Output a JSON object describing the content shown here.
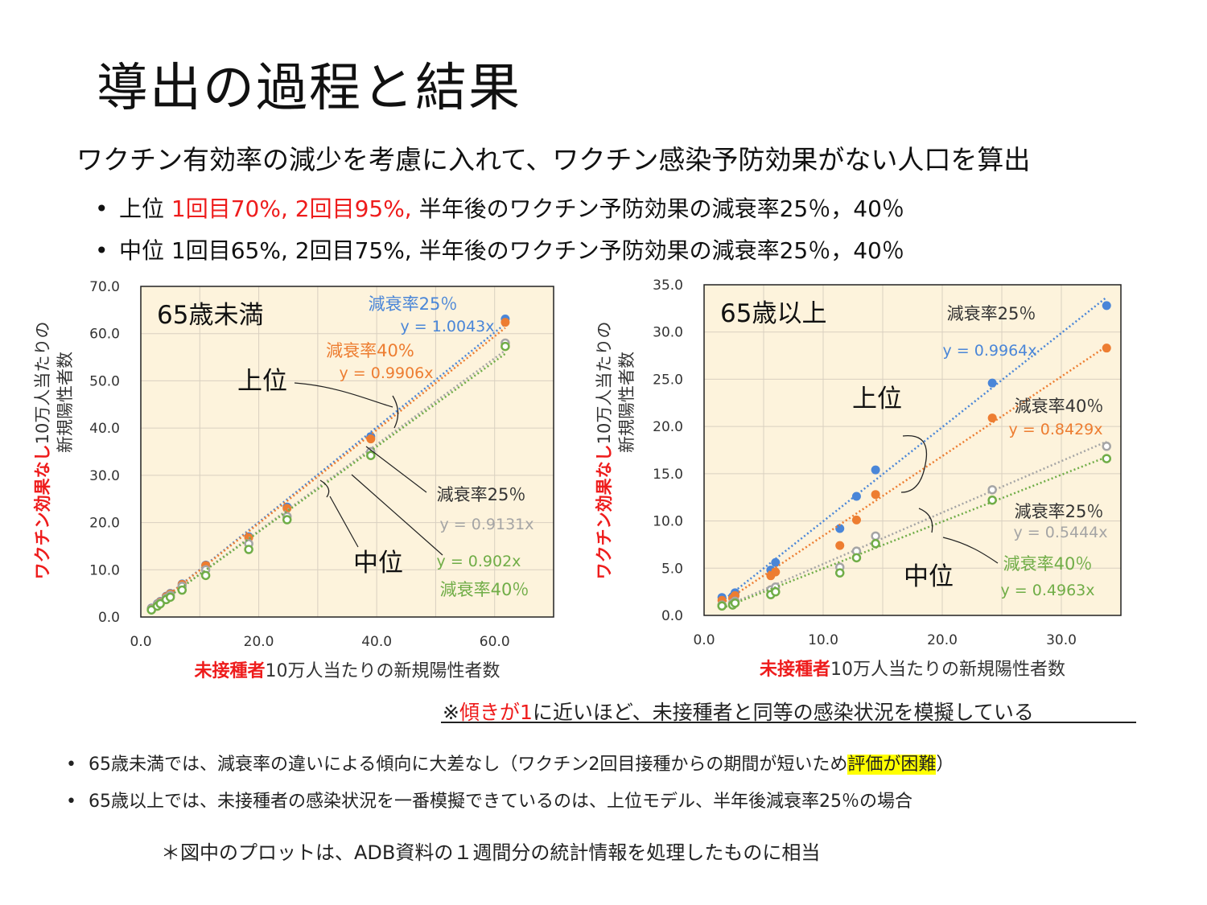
{
  "title": "導出の過程と結果",
  "subtitle": "ワクチン有効率の減少を考慮に入れて、ワクチン感染予防効果がない人口を算出",
  "bullets": [
    {
      "dot": "•",
      "lead": "上位 ",
      "red": "1回目70%, 2回目95%,",
      "rest": " 半年後のワクチン予防効果の減衰率25％，40％"
    },
    {
      "dot": "•",
      "lead": "中位 ",
      "red": "",
      "rest": "1回目65%, 2回目75%, 半年後のワクチン予防効果の減衰率25％，40％"
    }
  ],
  "colors": {
    "blue": "#4a86d8",
    "orange": "#ed7d31",
    "gray": "#a5a5a5",
    "green": "#70ad47",
    "plot_bg": "#fdf3dc",
    "red": "#ee1c1c"
  },
  "note": {
    "mark": "※",
    "red": "傾きが1",
    "rest": "に近いほど、未接種者と同等の感染状況を模擬している"
  },
  "conclusions": [
    {
      "dot": "•",
      "text": "65歳未満では、減衰率の違いによる傾向に大差なし（ワクチン2回目接種からの期間が短いため",
      "highlight": "評価が困難",
      "tail": "）"
    },
    {
      "dot": "•",
      "text": "65歳以上では、未接種者の感染状況を一番模擬できているのは、上位モデル、半年後減衰率25％の場合",
      "highlight": "",
      "tail": ""
    }
  ],
  "footnote": "＊図中のプロットは、ADB資料の１週間分の統計情報を処理したものに相当",
  "chart_data": [
    {
      "type": "scatter",
      "title": "65歳未満",
      "xlabel_red": "未接種者",
      "xlabel": "10万人当たりの新規陽性者数",
      "ylabel_red": "ワクチン効果なし",
      "ylabel_line1": "10万人当たりの",
      "ylabel_line2": "新規陽性者数",
      "xlim": [
        0,
        70
      ],
      "ylim": [
        0,
        70
      ],
      "xticks": [
        0,
        20,
        40,
        60
      ],
      "xtick_labels": [
        "0.0",
        "20.0",
        "40.0",
        "60.0"
      ],
      "yticks": [
        0,
        10,
        20,
        30,
        40,
        50,
        60,
        70
      ],
      "ytick_labels": [
        "0.0",
        "10.0",
        "20.0",
        "30.0",
        "40.0",
        "50.0",
        "60.0",
        "70.0"
      ],
      "grid": true,
      "x": [
        1.8,
        2.8,
        3.3,
        4.3,
        5.0,
        7.0,
        11.0,
        18.3,
        24.8,
        39.0,
        61.8
      ],
      "series": [
        {
          "color": "blue",
          "marker": "filled",
          "slope": 1.0043,
          "values": [
            1.9,
            2.8,
            3.3,
            4.4,
            5.0,
            7.0,
            11.0,
            17.0,
            23.3,
            38.2,
            63.1
          ]
        },
        {
          "color": "orange",
          "marker": "filled",
          "slope": 0.9906,
          "values": [
            1.8,
            2.7,
            3.2,
            4.3,
            4.9,
            6.9,
            10.9,
            16.8,
            23.0,
            37.7,
            62.4
          ]
        },
        {
          "color": "gray",
          "marker": "open",
          "slope": 0.9131,
          "values": [
            1.7,
            2.6,
            3.0,
            4.0,
            4.6,
            6.5,
            10.0,
            15.5,
            21.3,
            35.0,
            58.0
          ]
        },
        {
          "color": "green",
          "marker": "open",
          "slope": 0.902,
          "values": [
            1.5,
            2.3,
            2.8,
            3.7,
            4.2,
            5.7,
            8.8,
            14.3,
            20.6,
            34.2,
            57.3
          ]
        }
      ],
      "annotations": {
        "a1": "減衰率25％",
        "a1_eq": "y = 1.0043x",
        "a2": "減衰率40%",
        "a2_eq": "y = 0.9906x",
        "a3": "減衰率25％",
        "a3_eq": "y = 0.9131x",
        "a4_eq": "y = 0.902x",
        "a4": "減衰率40％",
        "upper": "上位",
        "middle": "中位"
      }
    },
    {
      "type": "scatter",
      "title": "65歳以上",
      "xlabel_red": "未接種者",
      "xlabel": "10万人当たりの新規陽性者数",
      "ylabel_red": "ワクチン効果なし",
      "ylabel_line1": "10万人当たりの",
      "ylabel_line2": "新規陽性者数",
      "xlim": [
        0,
        35
      ],
      "ylim": [
        0,
        35
      ],
      "xticks": [
        0,
        10,
        20,
        30
      ],
      "xtick_labels": [
        "0.0",
        "10.0",
        "20.0",
        "30.0"
      ],
      "yticks": [
        0,
        5,
        10,
        15,
        20,
        25,
        30,
        35
      ],
      "ytick_labels": [
        "0.0",
        "5.0",
        "10.0",
        "15.0",
        "20.0",
        "25.0",
        "30.0",
        "35.0"
      ],
      "grid": true,
      "x": [
        1.5,
        2.4,
        2.6,
        5.6,
        6.0,
        11.4,
        12.8,
        14.4,
        24.2,
        33.8
      ],
      "series": [
        {
          "color": "blue",
          "marker": "filled",
          "slope": 0.9964,
          "values": [
            1.9,
            2.0,
            2.4,
            4.8,
            5.6,
            9.2,
            12.6,
            15.4,
            24.6,
            32.8
          ]
        },
        {
          "color": "orange",
          "marker": "filled",
          "slope": 0.8429,
          "values": [
            1.6,
            1.8,
            2.1,
            4.2,
            4.6,
            7.4,
            10.1,
            12.8,
            20.9,
            28.3
          ]
        },
        {
          "color": "gray",
          "marker": "open",
          "slope": 0.5444,
          "values": [
            1.1,
            1.3,
            1.5,
            2.7,
            3.0,
            5.1,
            6.8,
            8.4,
            13.3,
            17.9
          ]
        },
        {
          "color": "green",
          "marker": "open",
          "slope": 0.4963,
          "values": [
            1.0,
            1.1,
            1.3,
            2.2,
            2.5,
            4.5,
            6.1,
            7.6,
            12.2,
            16.6
          ]
        }
      ],
      "annotations": {
        "a1": "減衰率25％",
        "a1_eq": "y = 0.9964x",
        "a2": "減衰率40％",
        "a2_eq": "y = 0.8429x",
        "a3": "減衰率25％",
        "a3_eq": "y = 0.5444x",
        "a4": "減衰率40％",
        "a4_eq": "y = 0.4963x",
        "upper": "上位",
        "middle": "中位"
      }
    }
  ]
}
